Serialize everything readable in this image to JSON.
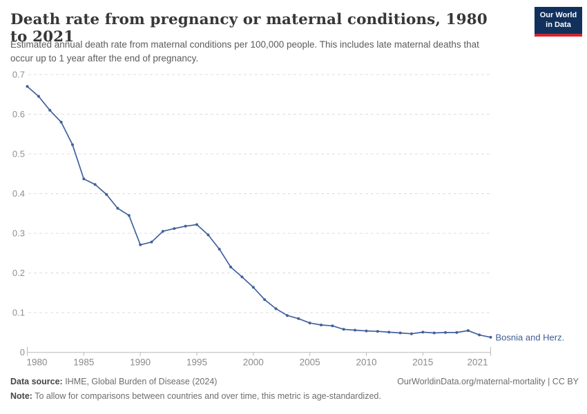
{
  "header": {
    "title": "Death rate from pregnancy or maternal conditions, 1980 to 2021",
    "subtitle": "Estimated annual death rate from maternal conditions per 100,000 people. This includes late maternal deaths that occur up to 1 year after the end of pregnancy.",
    "logo": {
      "line1": "Our World",
      "line2": "in Data",
      "bg_color": "#12305c",
      "stripe_color": "#d8252e"
    }
  },
  "chart_data": {
    "type": "line",
    "title": "Death rate from pregnancy or maternal conditions, 1980 to 2021",
    "xlabel": "",
    "ylabel": "Estimated annual death rate from maternal conditions per 100,000 people",
    "ylim": [
      0,
      0.7
    ],
    "yticks": [
      0,
      0.1,
      0.2,
      0.3,
      0.4,
      0.5,
      0.6,
      0.7
    ],
    "xticks": [
      1980,
      1985,
      1990,
      1995,
      2000,
      2005,
      2010,
      2015,
      2021
    ],
    "grid": "horizontal-dashed",
    "legend_position": "end-of-line-label",
    "line_color": "#40619c",
    "label_color": "#3d5c96",
    "x": [
      1980,
      1981,
      1982,
      1983,
      1984,
      1985,
      1986,
      1987,
      1988,
      1989,
      1990,
      1991,
      1992,
      1993,
      1994,
      1995,
      1996,
      1997,
      1998,
      1999,
      2000,
      2001,
      2002,
      2003,
      2004,
      2005,
      2006,
      2007,
      2008,
      2009,
      2010,
      2011,
      2012,
      2013,
      2014,
      2015,
      2016,
      2017,
      2018,
      2019,
      2020,
      2021
    ],
    "series": [
      {
        "name": "Bosnia and Herz.",
        "values": [
          0.67,
          0.645,
          0.61,
          0.58,
          0.523,
          0.437,
          0.423,
          0.398,
          0.363,
          0.345,
          0.271,
          0.278,
          0.305,
          0.312,
          0.318,
          0.322,
          0.296,
          0.26,
          0.215,
          0.19,
          0.164,
          0.133,
          0.11,
          0.093,
          0.085,
          0.074,
          0.069,
          0.067,
          0.058,
          0.056,
          0.054,
          0.053,
          0.051,
          0.049,
          0.047,
          0.051,
          0.049,
          0.05,
          0.05,
          0.055,
          0.044,
          0.038
        ]
      }
    ]
  },
  "footer": {
    "datasource_label": "Data source:",
    "datasource_text": " IHME, Global Burden of Disease (2024)",
    "credit": "OurWorldinData.org/maternal-mortality | CC BY",
    "note_label": "Note:",
    "note_text": " To allow for comparisons between countries and over time, this metric is age-standardized."
  }
}
